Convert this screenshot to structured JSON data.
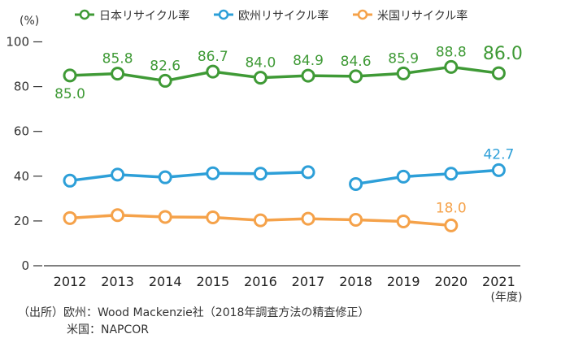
{
  "chart_data": {
    "type": "line",
    "y_unit_label": "(%)",
    "ylim": [
      0,
      100
    ],
    "y_ticks": [
      "0",
      "20",
      "40",
      "60",
      "80",
      "100"
    ],
    "y_tick_values": [
      0,
      20,
      40,
      60,
      80,
      100
    ],
    "categories": [
      "2012",
      "2013",
      "2014",
      "2015",
      "2016",
      "2017",
      "2018",
      "2019",
      "2020",
      "2021"
    ],
    "x_unit_label": "(年度)",
    "grid": false,
    "legend_position": "top",
    "series": [
      {
        "name": "日本リサイクル率",
        "color": "#3f9a36",
        "values": [
          85.0,
          85.8,
          82.6,
          86.7,
          84.0,
          84.9,
          84.6,
          85.9,
          88.8,
          86.0
        ],
        "labels": [
          "85.0",
          "85.8",
          "82.6",
          "86.7",
          "84.0",
          "84.9",
          "84.6",
          "85.9",
          "88.8",
          "86.0"
        ]
      },
      {
        "name": "欧州リサイクル率",
        "color": "#2d9fd8",
        "values": [
          38.0,
          40.7,
          39.5,
          41.3,
          41.1,
          41.8,
          null,
          39.8,
          41.1,
          42.7
        ],
        "broken_after_index": 5,
        "segment_start_2018": 36.5,
        "labels": [
          null,
          null,
          null,
          null,
          null,
          null,
          null,
          null,
          null,
          "42.7"
        ]
      },
      {
        "name": "米国リサイクル率",
        "color": "#f5a24a",
        "values": [
          21.3,
          22.6,
          21.8,
          21.6,
          20.3,
          21.0,
          20.5,
          19.8,
          18.0,
          null
        ],
        "labels": [
          null,
          null,
          null,
          null,
          null,
          null,
          null,
          null,
          "18.0",
          null
        ]
      }
    ]
  },
  "source": {
    "line1": "（出所）欧州：Wood Mackenzie社（2018年調査方法の精査修正）",
    "line2": "米国：NAPCOR"
  }
}
